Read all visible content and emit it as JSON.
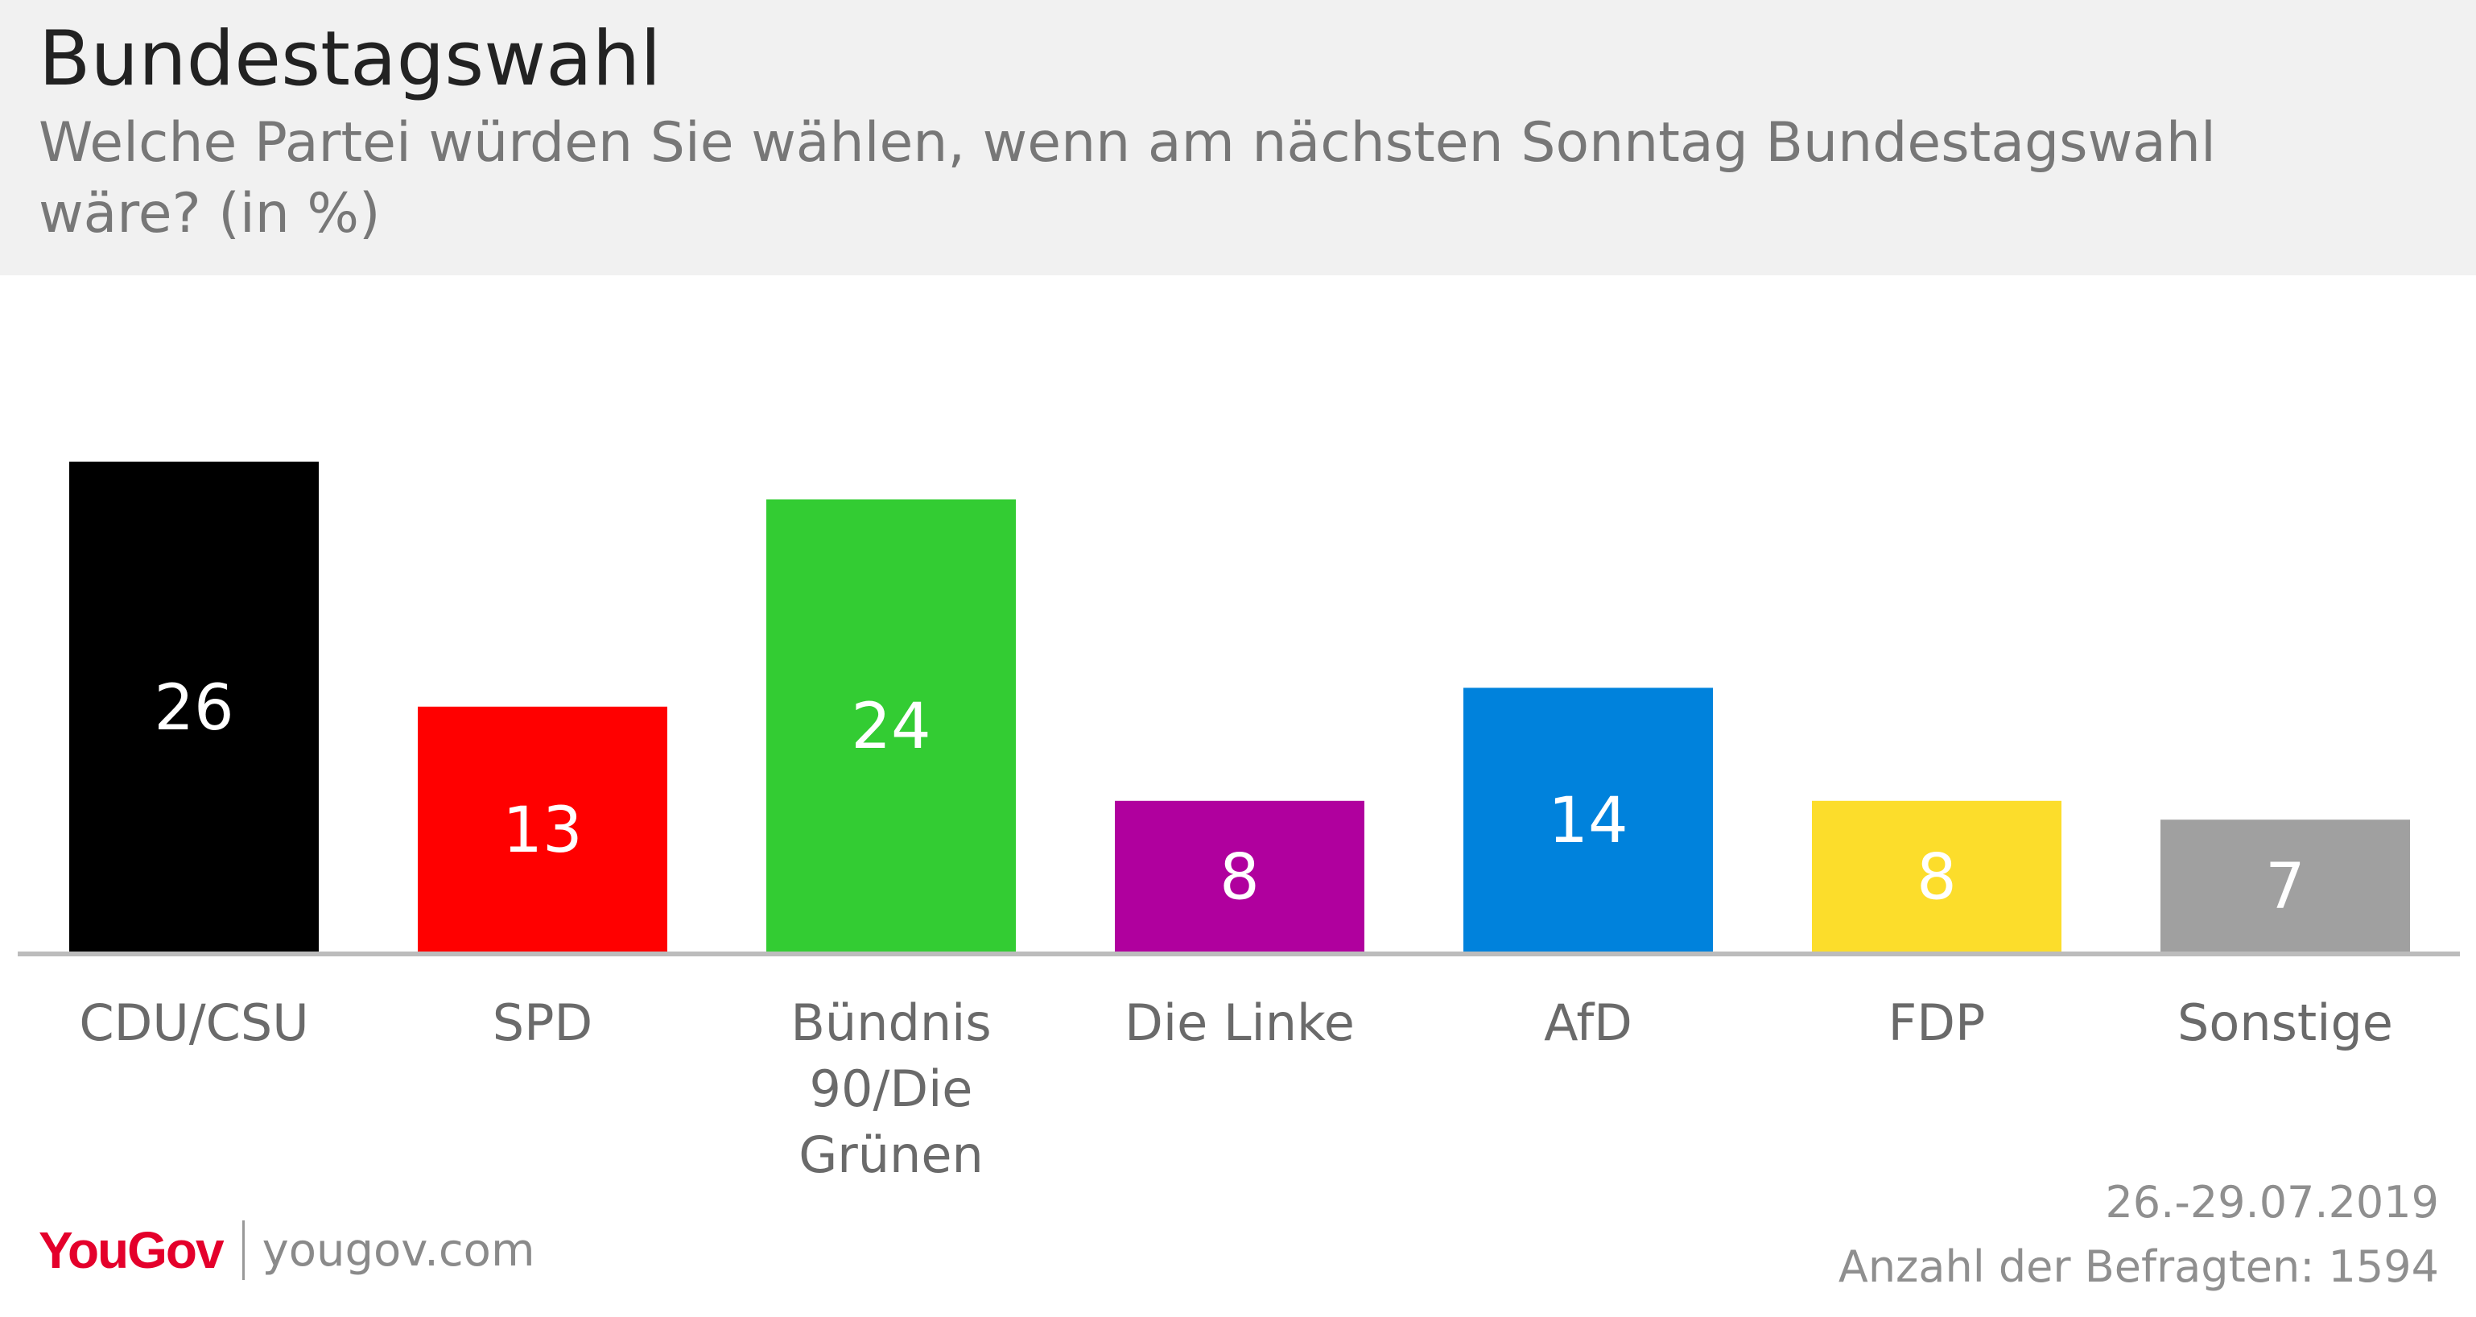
{
  "colors": {
    "header_bg": "#f1f1f1",
    "axis": "#bcbcbc",
    "category_text": "#6a6a6a"
  },
  "header": {
    "title": "Bundestagswahl",
    "subtitle": "Welche Partei würden Sie wählen, wenn am nächsten Sonntag Bundestagswahl wäre? (in %)"
  },
  "chart_data": {
    "type": "bar",
    "title": "Bundestagswahl",
    "subtitle": "Welche Partei würden Sie wählen, wenn am nächsten Sonntag Bundestagswahl wäre? (in %)",
    "xlabel": "",
    "ylabel": "",
    "ylim": [
      0,
      26
    ],
    "grid": false,
    "legend": "none",
    "categories": [
      "CDU/CSU",
      "SPD",
      "Bündnis 90/Die Grünen",
      "Die Linke",
      "AfD",
      "FDP",
      "Sonstige"
    ],
    "category_lines": [
      [
        "CDU/CSU"
      ],
      [
        "SPD"
      ],
      [
        "Bündnis",
        "90/Die",
        "Grünen"
      ],
      [
        "Die Linke"
      ],
      [
        "AfD"
      ],
      [
        "FDP"
      ],
      [
        "Sonstige"
      ]
    ],
    "values": [
      26,
      13,
      24,
      8,
      14,
      8,
      7
    ],
    "bar_colors": [
      "#000000",
      "#ff0000",
      "#33cc33",
      "#b0009e",
      "#0082dc",
      "#fcdd2b",
      "#a0a0a0"
    ],
    "label_colors": [
      "#ffffff",
      "#ffffff",
      "#ffffff",
      "#ffffff",
      "#ffffff",
      "#ffffff",
      "#ffffff"
    ]
  },
  "footer": {
    "brand": "YouGov",
    "url": "yougov.com",
    "date": "26.-29.07.2019",
    "sample": "Anzahl der Befragten: 1594"
  }
}
